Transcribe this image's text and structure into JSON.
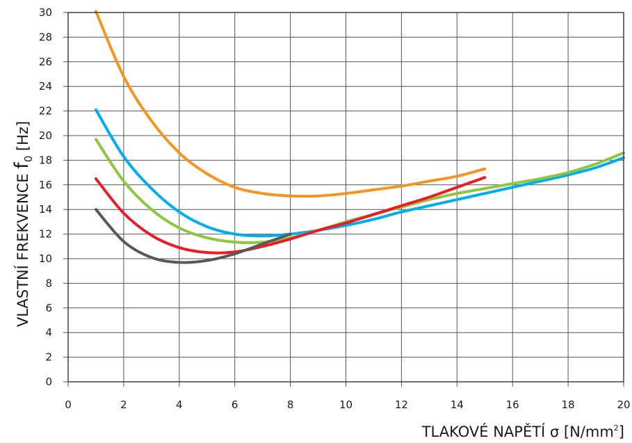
{
  "chart_data": {
    "type": "line",
    "xlabel": {
      "prefix": "TLAKOVÉ NAPĚTÍ ",
      "symbol": "σ",
      "unit_open": " [N/mm",
      "unit_sup": "2",
      "unit_close": "]"
    },
    "ylabel": {
      "prefix": "VLASTNÍ FREKVENCE ",
      "symbol": "f",
      "sub": "0",
      "unit": " [Hz]"
    },
    "xlim": [
      0,
      20
    ],
    "ylim": [
      0,
      30
    ],
    "x_ticks": [
      "0",
      "2",
      "4",
      "6",
      "8",
      "10",
      "12",
      "14",
      "16",
      "18",
      "20"
    ],
    "y_ticks": [
      "0",
      "2",
      "4",
      "6",
      "8",
      "10",
      "12",
      "14",
      "16",
      "18",
      "20",
      "22",
      "24",
      "26",
      "28",
      "30"
    ],
    "grid": true,
    "series": [
      {
        "color": "#f7941d",
        "points": [
          [
            1,
            30.1
          ],
          [
            2,
            24.8
          ],
          [
            3,
            21.2
          ],
          [
            4,
            18.6
          ],
          [
            5,
            16.9
          ],
          [
            6,
            15.8
          ],
          [
            7,
            15.3
          ],
          [
            8,
            15.1
          ],
          [
            9,
            15.1
          ],
          [
            10,
            15.3
          ],
          [
            11,
            15.6
          ],
          [
            12,
            15.9
          ],
          [
            13,
            16.3
          ],
          [
            14,
            16.7
          ],
          [
            15,
            17.3
          ]
        ]
      },
      {
        "color": "#00aeef",
        "points": [
          [
            1,
            22.1
          ],
          [
            2,
            18.3
          ],
          [
            3,
            15.7
          ],
          [
            4,
            13.8
          ],
          [
            5,
            12.6
          ],
          [
            6,
            12.0
          ],
          [
            7,
            11.85
          ],
          [
            8,
            12.0
          ],
          [
            9,
            12.3
          ],
          [
            10,
            12.7
          ],
          [
            11,
            13.2
          ],
          [
            12,
            13.8
          ],
          [
            13,
            14.3
          ],
          [
            14,
            14.8
          ],
          [
            15,
            15.3
          ],
          [
            16,
            15.8
          ],
          [
            17,
            16.3
          ],
          [
            18,
            16.8
          ],
          [
            19,
            17.4
          ],
          [
            20,
            18.2
          ]
        ]
      },
      {
        "color": "#8dc63f",
        "points": [
          [
            1,
            19.7
          ],
          [
            2,
            16.3
          ],
          [
            3,
            14.0
          ],
          [
            4,
            12.5
          ],
          [
            5,
            11.7
          ],
          [
            6,
            11.35
          ],
          [
            7,
            11.35
          ],
          [
            8,
            11.7
          ],
          [
            9,
            12.3
          ],
          [
            10,
            13.0
          ],
          [
            11,
            13.6
          ],
          [
            12,
            14.2
          ],
          [
            13,
            14.8
          ],
          [
            14,
            15.3
          ],
          [
            15,
            15.7
          ],
          [
            16,
            16.1
          ],
          [
            17,
            16.5
          ],
          [
            18,
            17.0
          ],
          [
            19,
            17.7
          ],
          [
            20,
            18.6
          ]
        ]
      },
      {
        "color": "#ed1c24",
        "points": [
          [
            1,
            16.5
          ],
          [
            2,
            13.7
          ],
          [
            3,
            11.9
          ],
          [
            4,
            10.9
          ],
          [
            5,
            10.5
          ],
          [
            6,
            10.55
          ],
          [
            7,
            11.0
          ],
          [
            8,
            11.6
          ],
          [
            9,
            12.3
          ],
          [
            10,
            12.9
          ],
          [
            11,
            13.6
          ],
          [
            12,
            14.3
          ],
          [
            13,
            15.0
          ],
          [
            14,
            15.8
          ],
          [
            15,
            16.6
          ]
        ]
      },
      {
        "color": "#58595b",
        "points": [
          [
            1,
            14.0
          ],
          [
            2,
            11.4
          ],
          [
            3,
            10.1
          ],
          [
            4,
            9.7
          ],
          [
            5,
            9.85
          ],
          [
            6,
            10.4
          ],
          [
            7,
            11.2
          ],
          [
            8,
            12.0
          ]
        ]
      }
    ]
  }
}
